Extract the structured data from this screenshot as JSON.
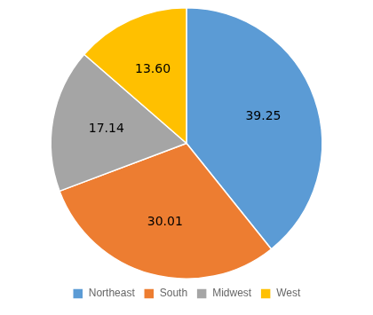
{
  "chart_data": {
    "type": "pie",
    "categories": [
      "Northeast",
      "South",
      "Midwest",
      "West"
    ],
    "values": [
      39.25,
      30.01,
      17.14,
      13.6
    ],
    "value_labels": [
      "39.25",
      "30.01",
      "17.14",
      "13.60"
    ],
    "colors": [
      "#5B9BD5",
      "#ED7D31",
      "#A5A5A5",
      "#FFC000"
    ],
    "data_labels": true,
    "legend": "bottom"
  }
}
